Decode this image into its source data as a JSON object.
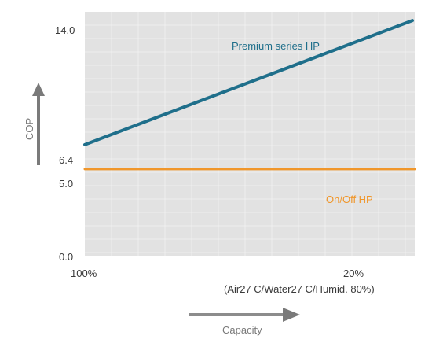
{
  "chart_data": {
    "type": "line",
    "title": "",
    "xlabel": "Capacity",
    "ylabel": "COP",
    "x_tick_labels": [
      "100%",
      "20%"
    ],
    "x_condition_note": "(Air27 C/Water27 C/Humid. 80%)",
    "ylim": [
      0.0,
      14.0
    ],
    "y_ticks": [
      "0.0",
      "5.0",
      "6.4",
      "14.0"
    ],
    "grid": true,
    "colors": {
      "plot_background": "#e2e2e2",
      "grid": "#efefef",
      "premium": "#1f6f8b",
      "onoff": "#f0962a",
      "arrow": "#7a7a7a"
    },
    "series": [
      {
        "name": "Premium series HP",
        "label_position": "top-right",
        "points": [
          {
            "x": "100%",
            "y": 6.4
          },
          {
            "x": "20%",
            "y": 13.5
          }
        ]
      },
      {
        "name": "On/Off HP",
        "label_position": "right",
        "points": [
          {
            "x": "100%",
            "y": 5.0
          },
          {
            "x": "20%",
            "y": 5.0
          }
        ]
      }
    ]
  }
}
